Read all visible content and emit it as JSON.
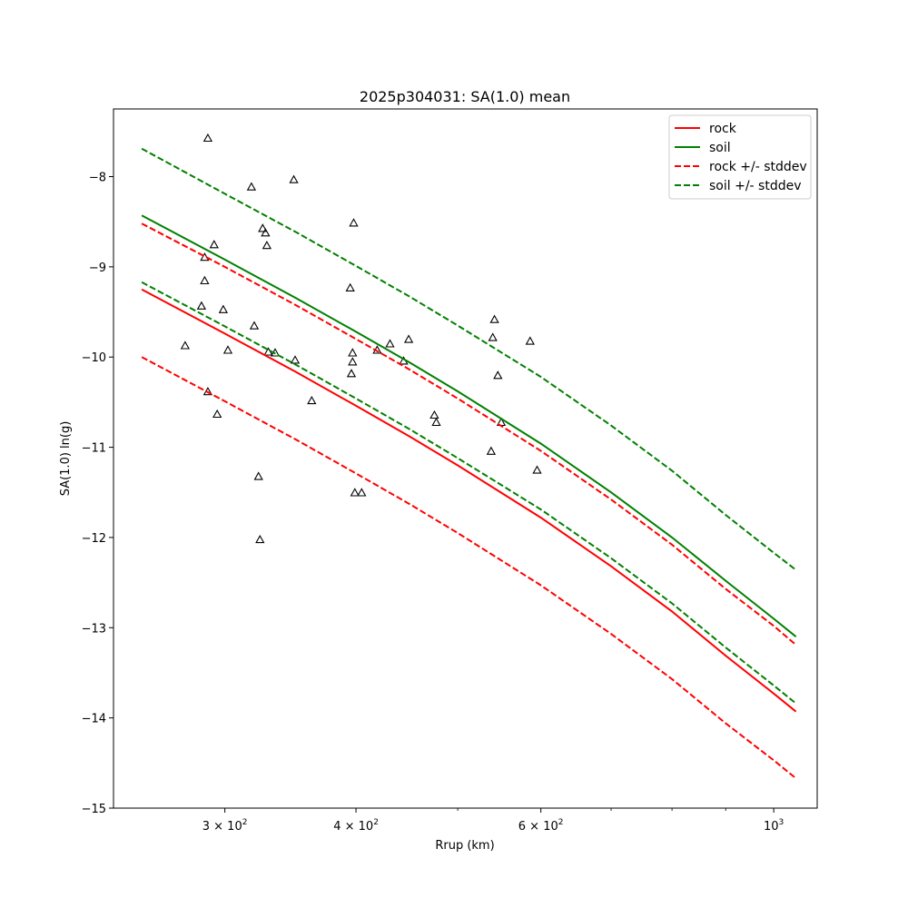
{
  "chart_data": {
    "type": "line",
    "title": "2025p304031: SA(1.0) mean",
    "xlabel": "Rrup (km)",
    "ylabel": "SA(1.0) ln(g)",
    "xscale": "log",
    "xlim": [
      235,
      1100
    ],
    "ylim": [
      -15,
      -7.25
    ],
    "grid": false,
    "legend_position": "top-right",
    "x_ticks": [
      {
        "value": 300,
        "base": "3 × 10",
        "exp": "2"
      },
      {
        "value": 400,
        "base": "4 × 10",
        "exp": "2"
      },
      {
        "value": 600,
        "base": "6 × 10",
        "exp": "2"
      },
      {
        "value": 1000,
        "base": "10",
        "exp": "3"
      }
    ],
    "x_minor_ticks": [
      500,
      700,
      800,
      900
    ],
    "y_ticks": [
      -15,
      -14,
      -13,
      -12,
      -11,
      -10,
      -9,
      -8
    ],
    "x": [
      250,
      300,
      350,
      400,
      450,
      500,
      600,
      700,
      800,
      900,
      1000,
      1050
    ],
    "series": [
      {
        "name": "rock",
        "color": "#ff0000",
        "style": "solid",
        "values": [
          -9.25,
          -9.74,
          -10.16,
          -10.54,
          -10.88,
          -11.2,
          -11.78,
          -12.32,
          -12.82,
          -13.31,
          -13.73,
          -13.93
        ]
      },
      {
        "name": "soil",
        "color": "#008000",
        "style": "solid",
        "values": [
          -8.43,
          -8.92,
          -9.34,
          -9.72,
          -10.06,
          -10.38,
          -10.96,
          -11.5,
          -12.0,
          -12.48,
          -12.9,
          -13.1
        ]
      },
      {
        "name": "rock +/- stddev",
        "color": "#ff0000",
        "style": "dashed",
        "group": "rock-upper",
        "values": [
          -8.52,
          -9.0,
          -9.42,
          -9.8,
          -10.14,
          -10.46,
          -11.04,
          -11.58,
          -12.08,
          -12.57,
          -12.98,
          -13.19
        ]
      },
      {
        "name": "",
        "color": "#ff0000",
        "style": "dashed",
        "group": "rock-lower",
        "values": [
          -10.0,
          -10.49,
          -10.91,
          -11.29,
          -11.63,
          -11.95,
          -12.53,
          -13.07,
          -13.57,
          -14.06,
          -14.47,
          -14.67
        ]
      },
      {
        "name": "soil +/- stddev",
        "color": "#008000",
        "style": "dashed",
        "group": "soil-upper",
        "values": [
          -7.69,
          -8.19,
          -8.61,
          -8.99,
          -9.33,
          -9.65,
          -10.22,
          -10.76,
          -11.26,
          -11.75,
          -12.17,
          -12.36
        ]
      },
      {
        "name": "",
        "color": "#008000",
        "style": "dashed",
        "group": "soil-lower",
        "values": [
          -9.17,
          -9.66,
          -10.08,
          -10.46,
          -10.8,
          -11.12,
          -11.69,
          -12.23,
          -12.73,
          -13.22,
          -13.64,
          -13.84
        ]
      }
    ],
    "observations": {
      "marker": "triangle-open",
      "color": "#000000",
      "points": [
        [
          289,
          -7.58
        ],
        [
          275,
          -9.88
        ],
        [
          285,
          -9.44
        ],
        [
          287,
          -9.16
        ],
        [
          287,
          -8.9
        ],
        [
          293,
          -8.76
        ],
        [
          289,
          -10.39
        ],
        [
          295,
          -10.64
        ],
        [
          299,
          -9.48
        ],
        [
          302,
          -9.93
        ],
        [
          318,
          -8.12
        ],
        [
          320,
          -9.66
        ],
        [
          323,
          -11.33
        ],
        [
          324,
          -12.03
        ],
        [
          326,
          -8.58
        ],
        [
          328,
          -8.63
        ],
        [
          329,
          -8.77
        ],
        [
          330,
          -9.95
        ],
        [
          335,
          -9.96
        ],
        [
          349,
          -8.04
        ],
        [
          350,
          -10.04
        ],
        [
          363,
          -10.49
        ],
        [
          395,
          -9.24
        ],
        [
          397,
          -9.96
        ],
        [
          397,
          -10.06
        ],
        [
          396,
          -10.19
        ],
        [
          398,
          -8.52
        ],
        [
          399,
          -11.51
        ],
        [
          405,
          -11.51
        ],
        [
          419,
          -9.93
        ],
        [
          431,
          -9.86
        ],
        [
          444,
          -10.05
        ],
        [
          449,
          -9.81
        ],
        [
          475,
          -10.65
        ],
        [
          477,
          -10.73
        ],
        [
          538,
          -11.05
        ],
        [
          540,
          -9.79
        ],
        [
          542,
          -9.59
        ],
        [
          546,
          -10.21
        ],
        [
          550,
          -10.73
        ],
        [
          586,
          -9.83
        ],
        [
          595,
          -11.26
        ]
      ]
    }
  }
}
